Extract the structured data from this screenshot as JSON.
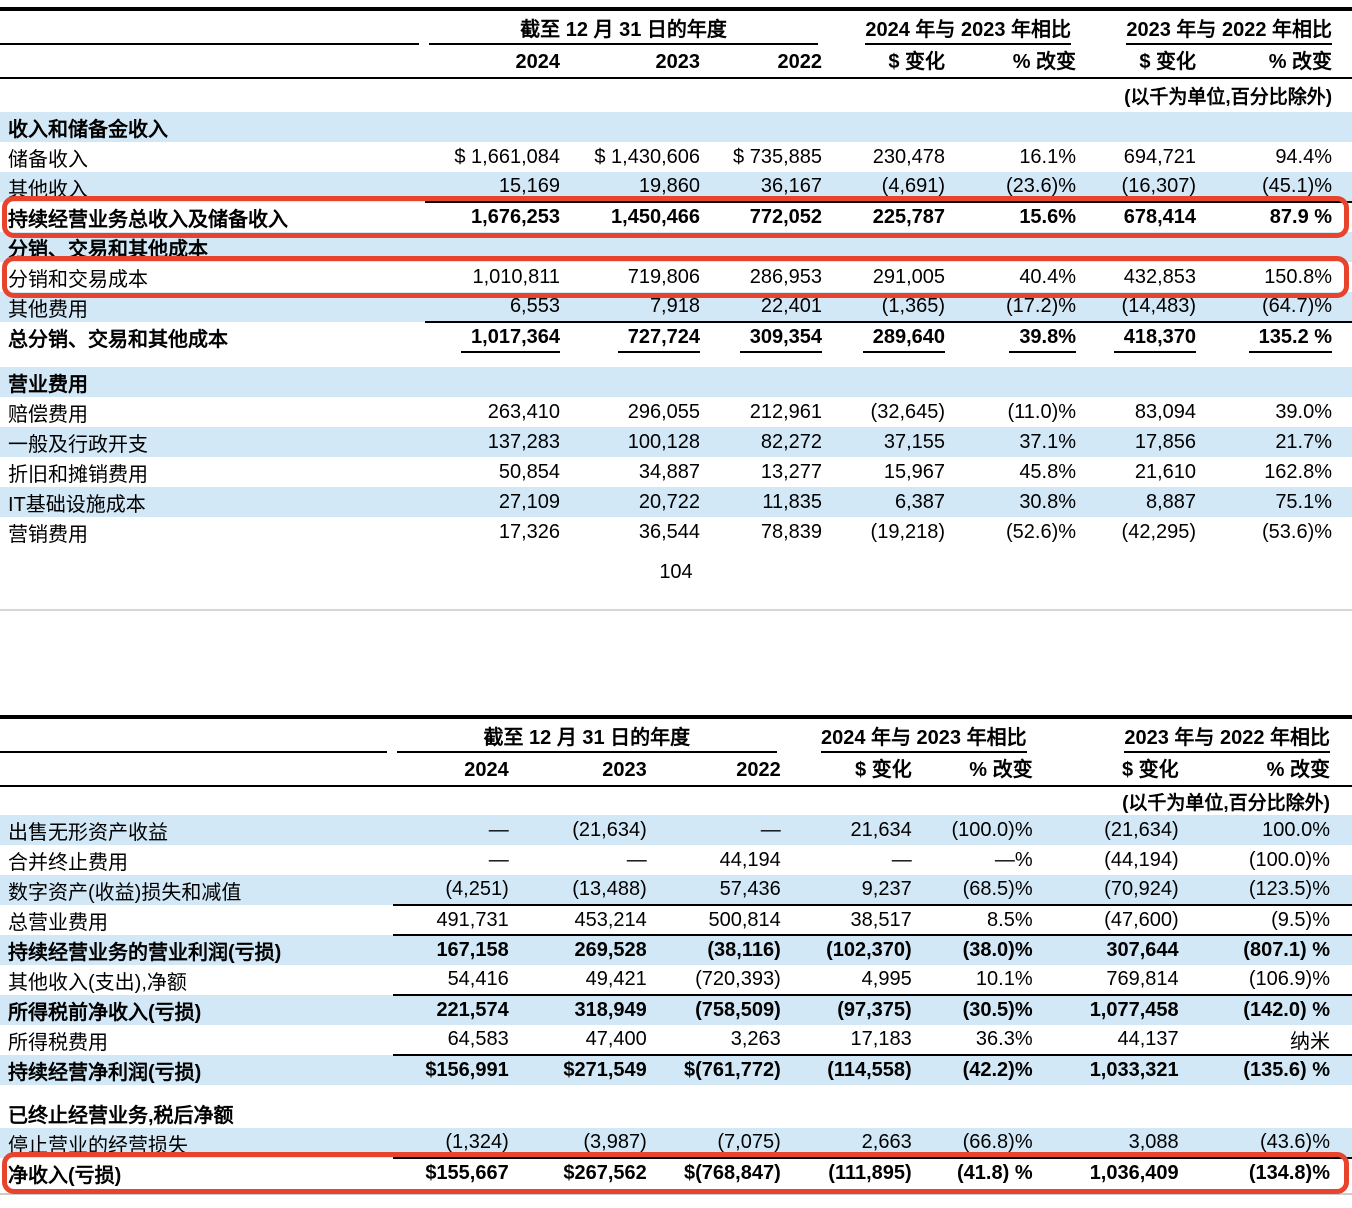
{
  "page_number": "104",
  "colors": {
    "row_shade": "#d3e8f6",
    "highlight_box": "#e8432c",
    "text": "#000000"
  },
  "table1": {
    "header": {
      "period_heading": "截至 12 月 31 日的年度",
      "years": [
        "2024",
        "2023",
        "2022"
      ],
      "compare1_heading": "2024 年与 2023 年相比",
      "compare2_heading": "2023 年与 2022 年相比",
      "dollar_change_label": "$ 变化",
      "pct_change_label": "% 改变",
      "units_note": "(以千为单位,百分比除外)"
    },
    "rows": [
      {
        "label": "收入和储备金收入",
        "type": "section",
        "shade": true
      },
      {
        "label": "储备收入",
        "values": [
          "$ 1,661,084",
          "$ 1,430,606",
          "$ 735,885",
          "230,478",
          "16.1%",
          "694,721",
          "94.4%"
        ]
      },
      {
        "label": "其他收入",
        "shade": true,
        "rule_below": true,
        "values": [
          "15,169",
          "19,860",
          "36,167",
          "(4,691)",
          "(23.6)%",
          "(16,307)",
          "(45.1)%"
        ]
      },
      {
        "label": "持续经营业务总收入及储备收入",
        "bold": true,
        "highlight": true,
        "values": [
          "1,676,253",
          "1,450,466",
          "772,052",
          "225,787",
          "15.6%",
          "678,414",
          "87.9 %"
        ]
      },
      {
        "label": "分销、交易和其他成本",
        "type": "section",
        "shade": true
      },
      {
        "label": "分销和交易成本",
        "highlight": true,
        "values": [
          "1,010,811",
          "719,806",
          "286,953",
          "291,005",
          "40.4%",
          "432,853",
          "150.8%"
        ]
      },
      {
        "label": "其他费用",
        "shade": true,
        "rule_below": true,
        "values": [
          "6,553",
          "7,918",
          "22,401",
          "(1,365)",
          "(17.2)%",
          "(14,483)",
          "(64.7)%"
        ]
      },
      {
        "label": "总分销、交易和其他成本",
        "bold": true,
        "seg_below": true,
        "values": [
          "1,017,364",
          "727,724",
          "309,354",
          "289,640",
          "39.8%",
          "418,370",
          "135.2 %"
        ]
      },
      {
        "type": "spacer"
      },
      {
        "label": "营业费用",
        "type": "section",
        "shade": true
      },
      {
        "label": "赔偿费用",
        "values": [
          "263,410",
          "296,055",
          "212,961",
          "(32,645)",
          "(11.0)%",
          "83,094",
          "39.0%"
        ]
      },
      {
        "label": "一般及行政开支",
        "shade": true,
        "values": [
          "137,283",
          "100,128",
          "82,272",
          "37,155",
          "37.1%",
          "17,856",
          "21.7%"
        ]
      },
      {
        "label": "折旧和摊销费用",
        "values": [
          "50,854",
          "34,887",
          "13,277",
          "15,967",
          "45.8%",
          "21,610",
          "162.8%"
        ]
      },
      {
        "label": "IT基础设施成本",
        "shade": true,
        "values": [
          "27,109",
          "20,722",
          "11,835",
          "6,387",
          "30.8%",
          "8,887",
          "75.1%"
        ]
      },
      {
        "label": "营销费用",
        "values": [
          "17,326",
          "36,544",
          "78,839",
          "(19,218)",
          "(52.6)%",
          "(42,295)",
          "(53.6)%"
        ]
      }
    ]
  },
  "table2": {
    "header": {
      "period_heading": "截至 12 月 31 日的年度",
      "years": [
        "2024",
        "2023",
        "2022"
      ],
      "compare1_heading": "2024 年与 2023 年相比",
      "compare2_heading": "2023 年与 2022 年相比",
      "dollar_change_label": "$ 变化",
      "pct_change_label": "% 改变",
      "units_note": "(以千为单位,百分比除外)"
    },
    "rows": [
      {
        "label": "出售无形资产收益",
        "shade": true,
        "values": [
          "—",
          "(21,634)",
          "—",
          "21,634",
          "(100.0)%",
          "(21,634)",
          "100.0%"
        ]
      },
      {
        "label": "合并终止费用",
        "values": [
          "—",
          "—",
          "44,194",
          "—",
          "—%",
          "(44,194)",
          "(100.0)%"
        ]
      },
      {
        "label": "数字资产(收益)损失和减值",
        "shade": true,
        "rule_below": true,
        "values": [
          "(4,251)",
          "(13,488)",
          "57,436",
          "9,237",
          "(68.5)%",
          "(70,924)",
          "(123.5)%"
        ]
      },
      {
        "label": "总营业费用",
        "rule_below": true,
        "values": [
          "491,731",
          "453,214",
          "500,814",
          "38,517",
          "8.5%",
          "(47,600)",
          "(9.5)%"
        ]
      },
      {
        "label": "持续经营业务的营业利润(亏损)",
        "shade": true,
        "bold": true,
        "values": [
          "167,158",
          "269,528",
          "(38,116)",
          "(102,370)",
          "(38.0)%",
          "307,644",
          "(807.1) %"
        ]
      },
      {
        "label": "其他收入(支出),净额",
        "rule_below": true,
        "values": [
          "54,416",
          "49,421",
          "(720,393)",
          "4,995",
          "10.1%",
          "769,814",
          "(106.9)%"
        ]
      },
      {
        "label": "所得税前净收入(亏损)",
        "shade": true,
        "bold": true,
        "values": [
          "221,574",
          "318,949",
          "(758,509)",
          "(97,375)",
          "(30.5)%",
          "1,077,458",
          "(142.0) %"
        ]
      },
      {
        "label": "所得税费用",
        "rule_below": true,
        "values": [
          "64,583",
          "47,400",
          "3,263",
          "17,183",
          "36.3%",
          "44,137",
          "纳米"
        ]
      },
      {
        "label": "持续经营净利润(亏损)",
        "shade": true,
        "bold": true,
        "values": [
          "$156,991",
          "$271,549",
          "$(761,772)",
          "(114,558)",
          "(42.2)%",
          "1,033,321",
          "(135.6) %"
        ]
      },
      {
        "type": "spacer"
      },
      {
        "label": "已终止经营业务,税后净额",
        "type": "section"
      },
      {
        "label": "停止营业的经营损失",
        "shade": true,
        "rule_below": true,
        "values": [
          "(1,324)",
          "(3,987)",
          "(7,075)",
          "2,663",
          "(66.8)%",
          "3,088",
          "(43.6)%"
        ]
      },
      {
        "label": "净收入(亏损)",
        "bold": true,
        "highlight": true,
        "values": [
          "$155,667",
          "$267,562",
          "$(768,847)",
          "(111,895)",
          "(41.8) %",
          "1,036,409",
          "(134.8)%"
        ]
      }
    ]
  }
}
